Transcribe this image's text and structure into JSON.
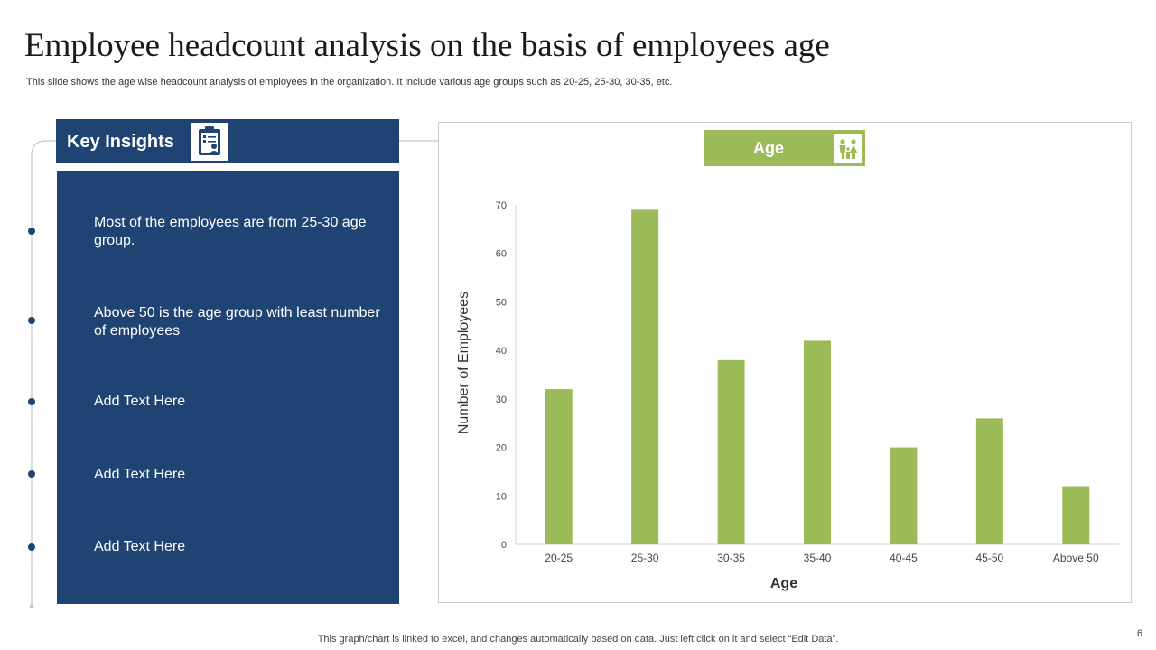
{
  "slide": {
    "title": "Employee headcount analysis on the basis of employees age",
    "subtitle": "This slide shows the age wise  headcount analysis of employees in the organization. It include  various age groups such as 20-25, 25-30, 30-35, etc.",
    "footer": "This graph/chart is linked to excel,  and changes automatically based on data. Just left click on it and select “Edit Data”.",
    "page_number": "6"
  },
  "insights": {
    "header": "Key Insights",
    "header_icon": "clipboard-people-icon",
    "items": [
      "Most of the employees are from 25-30 age group.",
      "Above 50 is the age group with least number of employees",
      "Add Text Here",
      "Add Text Here",
      "Add Text Here"
    ]
  },
  "badge": {
    "label": "Age",
    "icon": "family-icon"
  },
  "colors": {
    "navy": "#1f4473",
    "green": "#9bbb59",
    "connector": "#c0c6cf"
  },
  "chart_data": {
    "type": "bar",
    "categories": [
      "20-25",
      "25-30",
      "30-35",
      "35-40",
      "40-45",
      "45-50",
      "Above 50"
    ],
    "values": [
      32,
      69,
      38,
      42,
      20,
      26,
      12
    ],
    "xlabel": "Age",
    "ylabel": "Number of Employees",
    "ylim": [
      0,
      70
    ],
    "yticks": [
      0,
      10,
      20,
      30,
      40,
      50,
      60,
      70
    ],
    "grid": false,
    "legend": "none",
    "bar_color": "#9bbb59"
  }
}
